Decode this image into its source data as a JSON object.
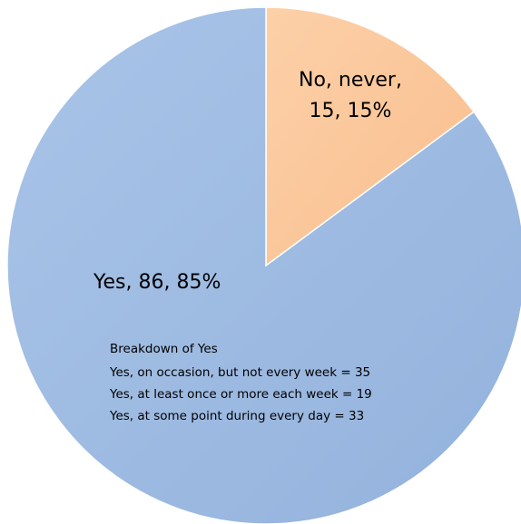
{
  "chart_data": {
    "type": "pie",
    "slices": [
      {
        "label": "No, never",
        "value": 15,
        "percent": "15%",
        "color": "#FBC79A"
      },
      {
        "label": "Yes",
        "value": 86,
        "percent": "85%",
        "color": "#9DBBE2"
      }
    ],
    "labels": {
      "no_line1": "No, never,",
      "no_line2": "15, 15%",
      "yes": "Yes, 86, 85%"
    },
    "annotation": {
      "title": "Breakdown of Yes",
      "lines": [
        "Yes, on occasion, but not every week = 35",
        "Yes, at least once or more each week = 19",
        "Yes, at some point during every day = 33"
      ]
    }
  }
}
